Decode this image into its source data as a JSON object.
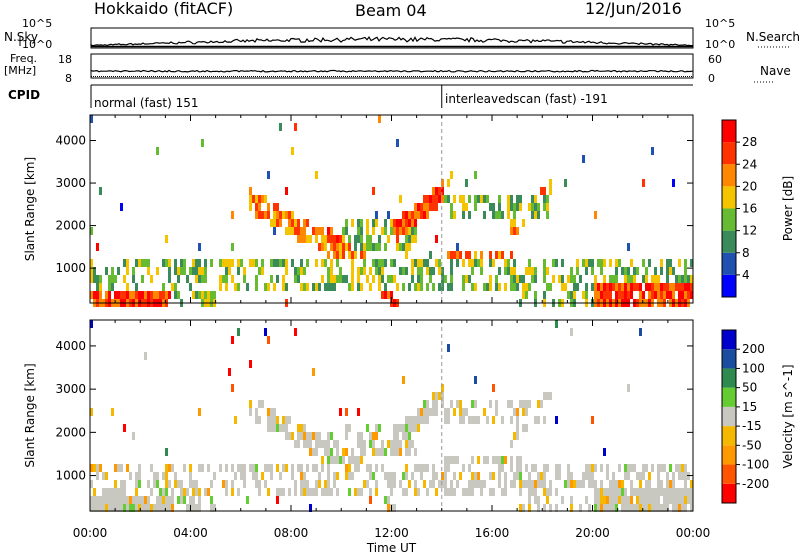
{
  "header": {
    "station": "Hokkaido (fitACF)",
    "beam": "Beam 04",
    "date": "12/Jun/2016"
  },
  "strip_labels": {
    "nsky": "N.Sky",
    "nsearch": "N.Search",
    "freq_line1": "Freq.",
    "freq_line2": "[MHz]",
    "nave": "Nave",
    "cpid": "CPID",
    "nsky_ticks": [
      "10^5",
      "10^0"
    ],
    "nsearch_ticks": [
      "10^5",
      "10^0"
    ],
    "freq_ticks": [
      "18",
      "8"
    ],
    "nave_ticks": [
      "60",
      "0"
    ]
  },
  "cpid_modes": [
    {
      "label": "normal (fast) 151",
      "start_hour": 0
    },
    {
      "label": "interleavedscan (fast) -191",
      "start_hour": 14
    }
  ],
  "colors": {
    "power": [
      "#0000ff",
      "#2050b0",
      "#3a8a5a",
      "#66bb33",
      "#f5c400",
      "#ff8800",
      "#ff3300",
      "#ff0000"
    ],
    "velocity": [
      "#ff0000",
      "#ff5500",
      "#ff9900",
      "#f4b800",
      "#c8c8c0",
      "#66cc33",
      "#2f8a4f",
      "#1a4da0",
      "#0000cc"
    ]
  },
  "chart_data": [
    {
      "type": "heatmap",
      "panel": "power",
      "xlabel": "Time UT",
      "ylabel": "Slant Range [km]",
      "x_ticks": [
        "00:00",
        "04:00",
        "08:00",
        "12:00",
        "16:00",
        "20:00",
        "00:00"
      ],
      "xlim_hours": [
        0,
        24
      ],
      "ylim": [
        180,
        4600
      ],
      "y_ticks": [
        1000,
        2000,
        3000,
        4000
      ],
      "colorbar_label": "Power [dB]",
      "colorbar_ticks": [
        "4",
        "8",
        "12",
        "16",
        "20",
        "24",
        "28"
      ],
      "colorbar_range": [
        0,
        32
      ]
    },
    {
      "type": "heatmap",
      "panel": "velocity",
      "xlabel": "Time UT",
      "ylabel": "Slant Range [km]",
      "x_ticks": [
        "00:00",
        "04:00",
        "08:00",
        "12:00",
        "16:00",
        "20:00",
        "00:00"
      ],
      "xlim_hours": [
        0,
        24
      ],
      "ylim": [
        180,
        4600
      ],
      "y_ticks": [
        1000,
        2000,
        3000,
        4000
      ],
      "colorbar_label": "Velocity [m s^-1]",
      "colorbar_ticks": [
        "-200",
        "-100",
        "-50",
        "-15",
        "15",
        "50",
        "100",
        "200"
      ],
      "colorbar_range": [
        -250,
        250
      ]
    }
  ]
}
